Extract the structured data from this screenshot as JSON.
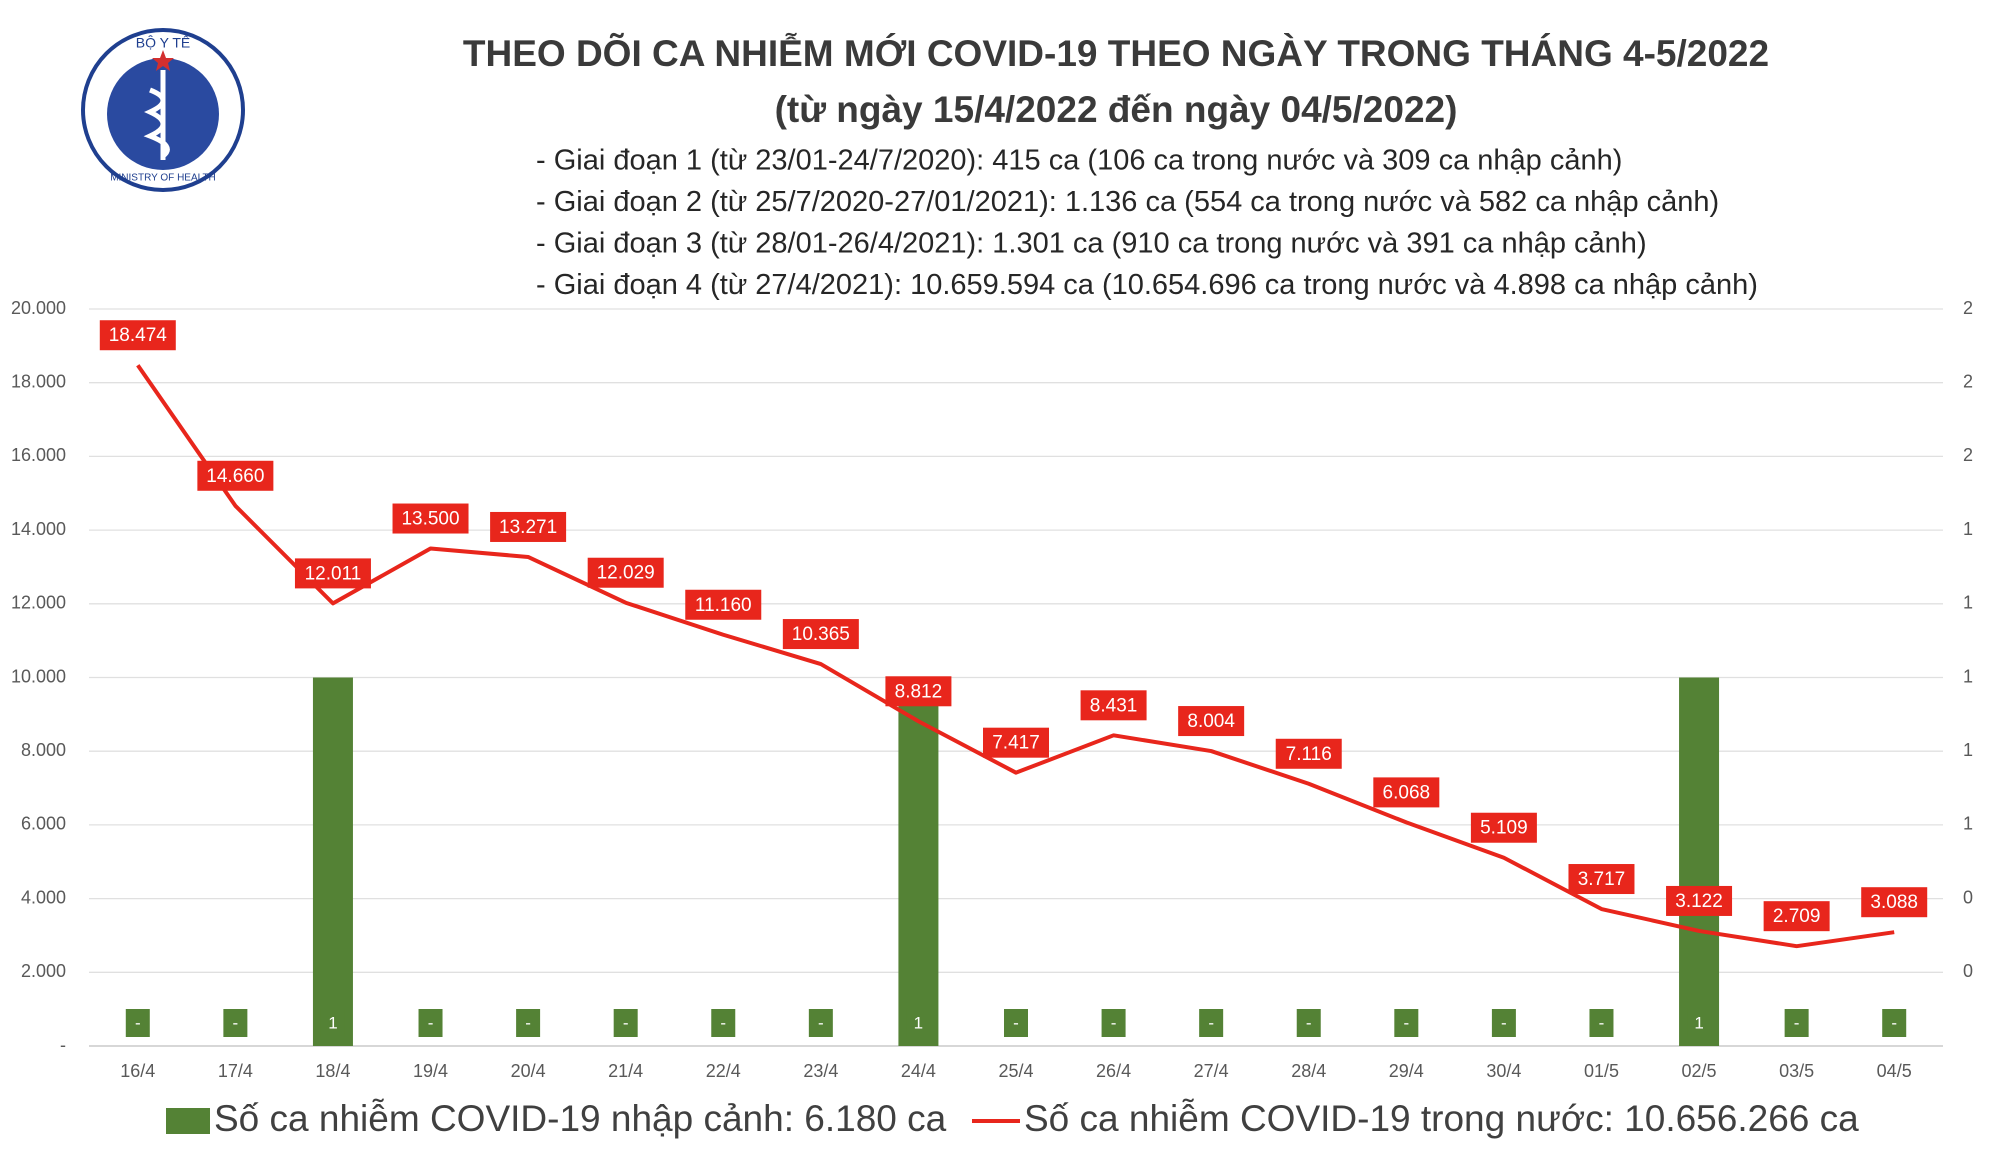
{
  "logo": {
    "top": "BỘ Y TẾ",
    "bottom": "MINISTRY OF HEALTH"
  },
  "chart_data": {
    "type": "bar-line",
    "title": "THEO DÕI CA NHIỄM MỚI COVID-19 THEO NGÀY TRONG THÁNG 4-5/2022",
    "subtitle": "(từ ngày 15/4/2022 đến ngày 04/5/2022)",
    "notes": [
      "- Giai đoạn 1 (từ 23/01-24/7/2020): 415 ca (106 ca trong nước và 309 ca nhập cảnh)",
      "- Giai đoạn 2 (từ 25/7/2020-27/01/2021): 1.136 ca (554 ca trong nước và 582 ca nhập cảnh)",
      "- Giai đoạn 3 (từ 28/01-26/4/2021): 1.301 ca (910 ca trong nước và 391 ca nhập cảnh)",
      "- Giai đoạn 4 (từ 27/4/2021): 10.659.594 ca (10.654.696 ca trong nước và 4.898 ca nhập cảnh)"
    ],
    "categories": [
      "16/4",
      "17/4",
      "18/4",
      "19/4",
      "20/4",
      "21/4",
      "22/4",
      "23/4",
      "24/4",
      "25/4",
      "26/4",
      "27/4",
      "28/4",
      "29/4",
      "30/4",
      "01/5",
      "02/5",
      "03/5",
      "04/5"
    ],
    "series": [
      {
        "name": "Số ca nhiễm COVID-19 nhập cảnh: 6.180 ca",
        "type": "bar",
        "axis": "y2",
        "color": "#548235",
        "values": [
          0,
          0,
          1,
          0,
          0,
          0,
          0,
          0,
          1,
          0,
          0,
          0,
          0,
          0,
          0,
          0,
          1,
          0,
          0
        ],
        "value_labels": [
          "-",
          "-",
          "1",
          "-",
          "-",
          "-",
          "-",
          "-",
          "1",
          "-",
          "-",
          "-",
          "-",
          "-",
          "-",
          "-",
          "1",
          "-",
          "-"
        ]
      },
      {
        "name": "Số ca nhiễm COVID-19 trong nước: 10.656.266 ca",
        "type": "line",
        "color": "#e8261c",
        "values": [
          18474,
          14660,
          12011,
          13500,
          13271,
          12029,
          11160,
          10365,
          8812,
          7417,
          8431,
          8004,
          7116,
          6068,
          5109,
          3717,
          3122,
          2709,
          3088
        ],
        "value_labels": [
          "18.474",
          "14.660",
          "12.011",
          "13.500",
          "13.271",
          "12.029",
          "11.160",
          "10.365",
          "8.812",
          "7.417",
          "8.431",
          "8.004",
          "7.116",
          "6.068",
          "5.109",
          "3.717",
          "3.122",
          "2.709",
          "3.088"
        ]
      }
    ],
    "ylim": [
      0,
      20000
    ],
    "yticks": [
      {
        "value": 0,
        "label": "-"
      },
      {
        "value": 2000,
        "label": "2.000"
      },
      {
        "value": 4000,
        "label": "4.000"
      },
      {
        "value": 6000,
        "label": "6.000"
      },
      {
        "value": 8000,
        "label": "8.000"
      },
      {
        "value": 10000,
        "label": "10.000"
      },
      {
        "value": 12000,
        "label": "12.000"
      },
      {
        "value": 14000,
        "label": "14.000"
      },
      {
        "value": 16000,
        "label": "16.000"
      },
      {
        "value": 18000,
        "label": "18.000"
      },
      {
        "value": 20000,
        "label": "20.000"
      }
    ],
    "y2lim": [
      0,
      2
    ],
    "y2ticks": [
      {
        "value": 0.2,
        "label": "0"
      },
      {
        "value": 0.4,
        "label": "0"
      },
      {
        "value": 0.6,
        "label": "1"
      },
      {
        "value": 0.8,
        "label": "1"
      },
      {
        "value": 1.0,
        "label": "1"
      },
      {
        "value": 1.2,
        "label": "1"
      },
      {
        "value": 1.4,
        "label": "1"
      },
      {
        "value": 1.6,
        "label": "2"
      },
      {
        "value": 1.8,
        "label": "2"
      },
      {
        "value": 2,
        "label": "2"
      }
    ],
    "grid": true,
    "legend": "bottom"
  }
}
